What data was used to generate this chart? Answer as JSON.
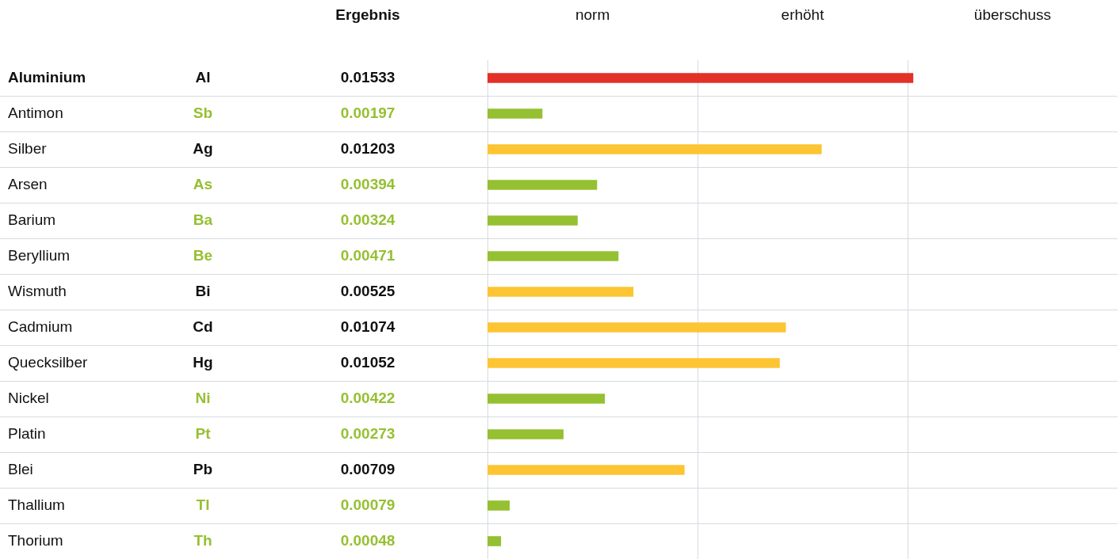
{
  "chart_data": {
    "type": "bar",
    "orientation": "horizontal",
    "grid": true,
    "tick_labels": "y",
    "data_labels": true,
    "categories": [
      "Aluminium",
      "Antimon",
      "Silber",
      "Arsen",
      "Barium",
      "Beryllium",
      "Wismuth",
      "Cadmium",
      "Quecksilber",
      "Nickel",
      "Platin",
      "Blei",
      "Thallium",
      "Thorium"
    ],
    "values": [
      0.01533,
      0.00197,
      0.01203,
      0.00394,
      0.00324,
      0.00471,
      0.00525,
      0.01074,
      0.01052,
      0.00422,
      0.00273,
      0.00709,
      0.00079,
      0.00048
    ],
    "colors": [
      "#e33127",
      "#95c031",
      "#fdc533",
      "#95c031",
      "#95c031",
      "#95c031",
      "#fdc533",
      "#fdc533",
      "#fdc533",
      "#95c031",
      "#95c031",
      "#fdc533",
      "#95c031",
      "#95c031"
    ],
    "xlim": [
      0,
      0.0227
    ],
    "xticks": [
      {
        "value": 0.00757,
        "label": null
      },
      {
        "value": 0.01513,
        "label": null
      }
    ],
    "annotations": [
      "Ergebnis",
      "norm",
      "erhöht",
      "überschuss",
      "Al",
      "Sb",
      "Ag",
      "As",
      "Ba",
      "Be",
      "Bi",
      "Cd",
      "Hg",
      "Ni",
      "Pt",
      "Pb",
      "Tl",
      "Th"
    ]
  }
}
